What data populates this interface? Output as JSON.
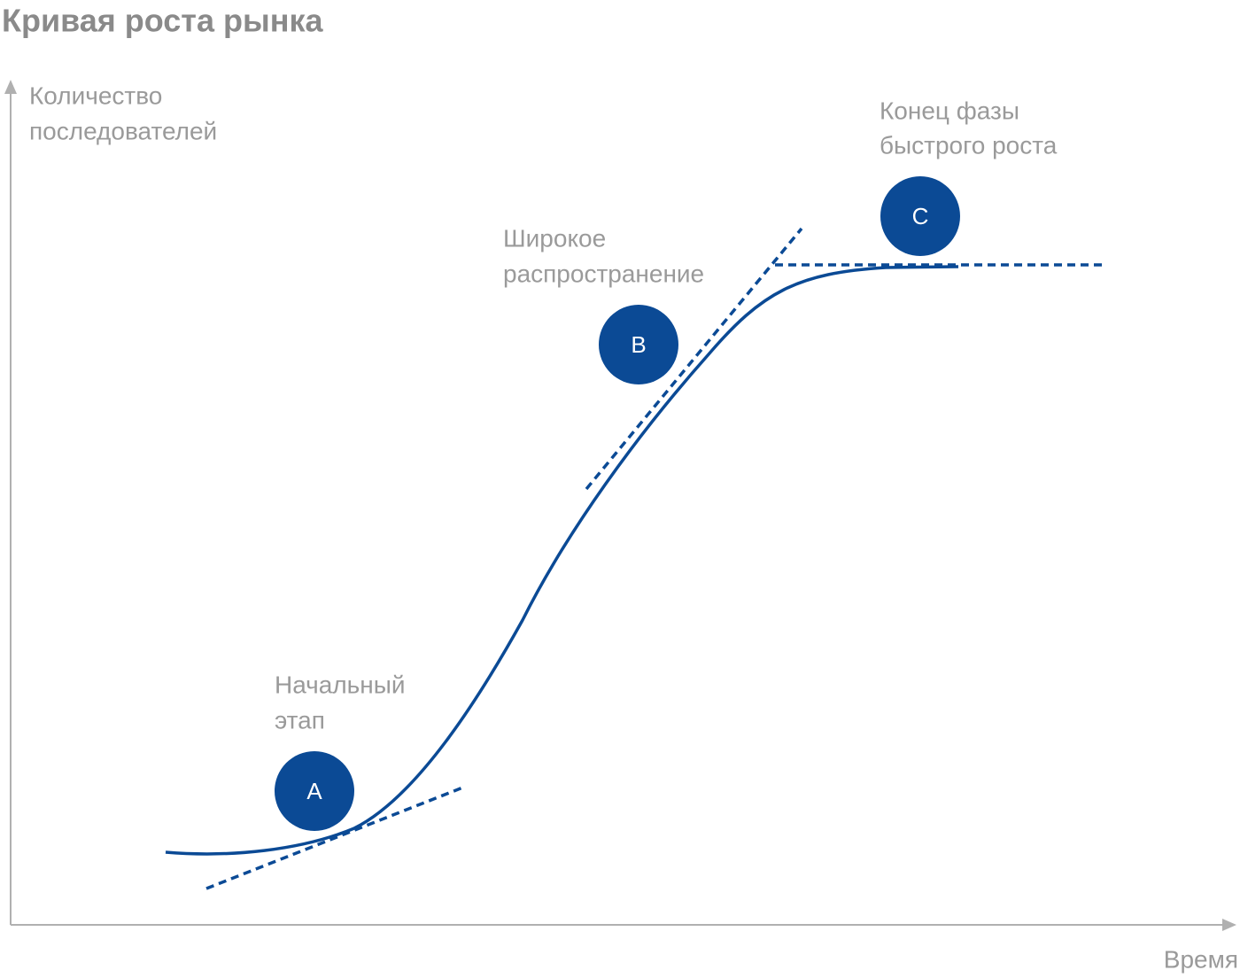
{
  "title": "Кривая роста рынка",
  "axes": {
    "y_label": [
      "Количество",
      "последователей"
    ],
    "x_label": "Время"
  },
  "stages": [
    {
      "label": [
        "Начальный",
        "этап"
      ],
      "marker": "A"
    },
    {
      "label": [
        "Широкое",
        "распространение"
      ],
      "marker": "B"
    },
    {
      "label": [
        "Конец фазы",
        "быстрого роста"
      ],
      "marker": "C"
    }
  ]
}
